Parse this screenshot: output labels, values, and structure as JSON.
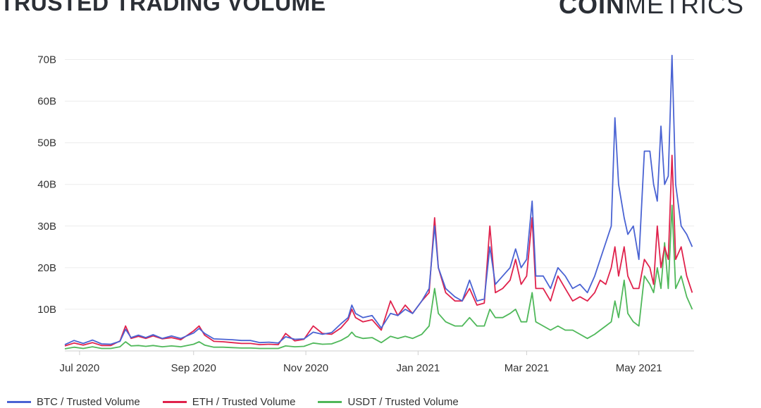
{
  "header": {
    "title": "TRUSTED TRADING VOLUME",
    "brand_bold": "COIN",
    "brand_light": "METRICS"
  },
  "chart_data": {
    "type": "line",
    "title": "TRUSTED TRADING VOLUME",
    "xlabel": "",
    "ylabel": "",
    "x_range": [
      "2020-06-23",
      "2021-05-31"
    ],
    "ylim": [
      0,
      75
    ],
    "y_unit": "B",
    "yticks": [
      10,
      20,
      30,
      40,
      50,
      60,
      70
    ],
    "ytick_labels": [
      "10B",
      "20B",
      "30B",
      "40B",
      "50B",
      "60B",
      "70B"
    ],
    "xticks": [
      "2020-07-01",
      "2020-09-01",
      "2020-11-01",
      "2021-01-01",
      "2021-03-01",
      "2021-05-01"
    ],
    "xtick_labels": [
      "Jul 2020",
      "Sep 2020",
      "Nov 2020",
      "Jan 2021",
      "Mar 2021",
      "May 2021"
    ],
    "grid": true,
    "legend_position": "bottom",
    "series": [
      {
        "name": "BTC / Trusted Volume",
        "color": "#4a63d3",
        "points": [
          [
            "2020-06-23",
            1.5
          ],
          [
            "2020-06-28",
            2.5
          ],
          [
            "2020-07-03",
            1.8
          ],
          [
            "2020-07-08",
            2.6
          ],
          [
            "2020-07-13",
            1.7
          ],
          [
            "2020-07-18",
            1.6
          ],
          [
            "2020-07-23",
            2.3
          ],
          [
            "2020-07-26",
            5.2
          ],
          [
            "2020-07-29",
            3.2
          ],
          [
            "2020-08-02",
            3.8
          ],
          [
            "2020-08-06",
            3.2
          ],
          [
            "2020-08-10",
            3.9
          ],
          [
            "2020-08-15",
            3.0
          ],
          [
            "2020-08-20",
            3.6
          ],
          [
            "2020-08-25",
            3.0
          ],
          [
            "2020-09-01",
            4.3
          ],
          [
            "2020-09-04",
            5.4
          ],
          [
            "2020-09-07",
            4.2
          ],
          [
            "2020-09-12",
            2.9
          ],
          [
            "2020-09-17",
            2.8
          ],
          [
            "2020-09-22",
            2.7
          ],
          [
            "2020-09-27",
            2.5
          ],
          [
            "2020-10-02",
            2.5
          ],
          [
            "2020-10-07",
            2.0
          ],
          [
            "2020-10-12",
            2.1
          ],
          [
            "2020-10-17",
            1.9
          ],
          [
            "2020-10-21",
            3.4
          ],
          [
            "2020-10-26",
            2.8
          ],
          [
            "2020-10-31",
            2.9
          ],
          [
            "2020-11-05",
            4.5
          ],
          [
            "2020-11-10",
            4.0
          ],
          [
            "2020-11-15",
            4.4
          ],
          [
            "2020-11-20",
            6.5
          ],
          [
            "2020-11-24",
            8.0
          ],
          [
            "2020-11-26",
            11.0
          ],
          [
            "2020-11-28",
            9.0
          ],
          [
            "2020-12-02",
            8.0
          ],
          [
            "2020-12-07",
            8.5
          ],
          [
            "2020-12-12",
            5.5
          ],
          [
            "2020-12-17",
            9.0
          ],
          [
            "2020-12-21",
            8.5
          ],
          [
            "2020-12-25",
            10.0
          ],
          [
            "2020-12-29",
            9.0
          ],
          [
            "2021-01-03",
            12.0
          ],
          [
            "2021-01-07",
            15.0
          ],
          [
            "2021-01-10",
            30.0
          ],
          [
            "2021-01-12",
            20.0
          ],
          [
            "2021-01-16",
            15.0
          ],
          [
            "2021-01-21",
            13.0
          ],
          [
            "2021-01-25",
            12.0
          ],
          [
            "2021-01-29",
            17.0
          ],
          [
            "2021-02-02",
            12.0
          ],
          [
            "2021-02-06",
            12.5
          ],
          [
            "2021-02-09",
            25.0
          ],
          [
            "2021-02-12",
            16.0
          ],
          [
            "2021-02-16",
            18.0
          ],
          [
            "2021-02-20",
            20.0
          ],
          [
            "2021-02-23",
            24.5
          ],
          [
            "2021-02-26",
            20.0
          ],
          [
            "2021-03-01",
            22.0
          ],
          [
            "2021-03-04",
            36.0
          ],
          [
            "2021-03-06",
            18.0
          ],
          [
            "2021-03-10",
            18.0
          ],
          [
            "2021-03-14",
            15.0
          ],
          [
            "2021-03-18",
            20.0
          ],
          [
            "2021-03-22",
            18.0
          ],
          [
            "2021-03-26",
            15.0
          ],
          [
            "2021-03-30",
            16.0
          ],
          [
            "2021-04-03",
            14.0
          ],
          [
            "2021-04-07",
            18.0
          ],
          [
            "2021-04-10",
            22.0
          ],
          [
            "2021-04-13",
            26.0
          ],
          [
            "2021-04-16",
            30.0
          ],
          [
            "2021-04-18",
            56.0
          ],
          [
            "2021-04-20",
            40.0
          ],
          [
            "2021-04-23",
            32.0
          ],
          [
            "2021-04-25",
            28.0
          ],
          [
            "2021-04-28",
            30.0
          ],
          [
            "2021-05-01",
            22.0
          ],
          [
            "2021-05-04",
            48.0
          ],
          [
            "2021-05-07",
            48.0
          ],
          [
            "2021-05-09",
            40.0
          ],
          [
            "2021-05-11",
            36.0
          ],
          [
            "2021-05-13",
            54.0
          ],
          [
            "2021-05-15",
            40.0
          ],
          [
            "2021-05-17",
            42.0
          ],
          [
            "2021-05-19",
            71.0
          ],
          [
            "2021-05-21",
            40.0
          ],
          [
            "2021-05-24",
            30.0
          ],
          [
            "2021-05-27",
            28.0
          ],
          [
            "2021-05-30",
            25.0
          ]
        ]
      },
      {
        "name": "ETH / Trusted Volume",
        "color": "#e0224c",
        "points": [
          [
            "2020-06-23",
            1.2
          ],
          [
            "2020-06-28",
            1.9
          ],
          [
            "2020-07-03",
            1.4
          ],
          [
            "2020-07-08",
            2.0
          ],
          [
            "2020-07-13",
            1.3
          ],
          [
            "2020-07-18",
            1.3
          ],
          [
            "2020-07-23",
            2.4
          ],
          [
            "2020-07-26",
            6.0
          ],
          [
            "2020-07-29",
            3.0
          ],
          [
            "2020-08-02",
            3.5
          ],
          [
            "2020-08-06",
            3.0
          ],
          [
            "2020-08-10",
            3.6
          ],
          [
            "2020-08-15",
            2.9
          ],
          [
            "2020-08-20",
            3.2
          ],
          [
            "2020-08-25",
            2.7
          ],
          [
            "2020-09-01",
            4.8
          ],
          [
            "2020-09-04",
            6.0
          ],
          [
            "2020-09-07",
            3.8
          ],
          [
            "2020-09-12",
            2.3
          ],
          [
            "2020-09-17",
            2.2
          ],
          [
            "2020-09-22",
            2.0
          ],
          [
            "2020-09-27",
            1.8
          ],
          [
            "2020-10-02",
            1.8
          ],
          [
            "2020-10-07",
            1.5
          ],
          [
            "2020-10-12",
            1.6
          ],
          [
            "2020-10-17",
            1.5
          ],
          [
            "2020-10-21",
            4.2
          ],
          [
            "2020-10-26",
            2.4
          ],
          [
            "2020-10-31",
            2.8
          ],
          [
            "2020-11-05",
            6.0
          ],
          [
            "2020-11-10",
            4.2
          ],
          [
            "2020-11-15",
            4.0
          ],
          [
            "2020-11-20",
            5.5
          ],
          [
            "2020-11-24",
            7.5
          ],
          [
            "2020-11-26",
            10.0
          ],
          [
            "2020-11-28",
            8.0
          ],
          [
            "2020-12-02",
            7.0
          ],
          [
            "2020-12-07",
            7.5
          ],
          [
            "2020-12-12",
            5.0
          ],
          [
            "2020-12-17",
            12.0
          ],
          [
            "2020-12-21",
            8.5
          ],
          [
            "2020-12-25",
            11.0
          ],
          [
            "2020-12-29",
            9.0
          ],
          [
            "2021-01-03",
            12.0
          ],
          [
            "2021-01-07",
            14.0
          ],
          [
            "2021-01-10",
            32.0
          ],
          [
            "2021-01-12",
            20.0
          ],
          [
            "2021-01-16",
            14.0
          ],
          [
            "2021-01-21",
            12.0
          ],
          [
            "2021-01-25",
            12.0
          ],
          [
            "2021-01-29",
            15.0
          ],
          [
            "2021-02-02",
            11.0
          ],
          [
            "2021-02-06",
            11.5
          ],
          [
            "2021-02-09",
            30.0
          ],
          [
            "2021-02-12",
            14.0
          ],
          [
            "2021-02-16",
            15.0
          ],
          [
            "2021-02-20",
            17.0
          ],
          [
            "2021-02-23",
            22.0
          ],
          [
            "2021-02-26",
            16.0
          ],
          [
            "2021-03-01",
            18.0
          ],
          [
            "2021-03-04",
            32.0
          ],
          [
            "2021-03-06",
            15.0
          ],
          [
            "2021-03-10",
            15.0
          ],
          [
            "2021-03-14",
            12.0
          ],
          [
            "2021-03-18",
            18.0
          ],
          [
            "2021-03-22",
            15.0
          ],
          [
            "2021-03-26",
            12.0
          ],
          [
            "2021-03-30",
            13.0
          ],
          [
            "2021-04-03",
            12.0
          ],
          [
            "2021-04-07",
            14.0
          ],
          [
            "2021-04-10",
            17.0
          ],
          [
            "2021-04-13",
            16.0
          ],
          [
            "2021-04-16",
            20.0
          ],
          [
            "2021-04-18",
            25.0
          ],
          [
            "2021-04-20",
            18.0
          ],
          [
            "2021-04-23",
            25.0
          ],
          [
            "2021-04-25",
            18.0
          ],
          [
            "2021-04-28",
            15.0
          ],
          [
            "2021-05-01",
            15.0
          ],
          [
            "2021-05-04",
            22.0
          ],
          [
            "2021-05-07",
            20.0
          ],
          [
            "2021-05-09",
            16.0
          ],
          [
            "2021-05-11",
            30.0
          ],
          [
            "2021-05-13",
            20.0
          ],
          [
            "2021-05-15",
            25.0
          ],
          [
            "2021-05-17",
            22.0
          ],
          [
            "2021-05-19",
            47.0
          ],
          [
            "2021-05-21",
            22.0
          ],
          [
            "2021-05-24",
            25.0
          ],
          [
            "2021-05-27",
            18.0
          ],
          [
            "2021-05-30",
            14.0
          ]
        ]
      },
      {
        "name": "USDT / Trusted Volume",
        "color": "#4fb85a",
        "points": [
          [
            "2020-06-23",
            0.5
          ],
          [
            "2020-06-28",
            0.9
          ],
          [
            "2020-07-03",
            0.6
          ],
          [
            "2020-07-08",
            1.0
          ],
          [
            "2020-07-13",
            0.6
          ],
          [
            "2020-07-18",
            0.6
          ],
          [
            "2020-07-23",
            1.0
          ],
          [
            "2020-07-26",
            2.2
          ],
          [
            "2020-07-29",
            1.2
          ],
          [
            "2020-08-02",
            1.3
          ],
          [
            "2020-08-06",
            1.1
          ],
          [
            "2020-08-10",
            1.3
          ],
          [
            "2020-08-15",
            1.0
          ],
          [
            "2020-08-20",
            1.2
          ],
          [
            "2020-08-25",
            1.0
          ],
          [
            "2020-09-01",
            1.6
          ],
          [
            "2020-09-04",
            2.2
          ],
          [
            "2020-09-07",
            1.4
          ],
          [
            "2020-09-12",
            0.9
          ],
          [
            "2020-09-17",
            0.9
          ],
          [
            "2020-09-22",
            0.8
          ],
          [
            "2020-09-27",
            0.7
          ],
          [
            "2020-10-02",
            0.7
          ],
          [
            "2020-10-07",
            0.6
          ],
          [
            "2020-10-12",
            0.6
          ],
          [
            "2020-10-17",
            0.6
          ],
          [
            "2020-10-21",
            1.2
          ],
          [
            "2020-10-26",
            1.0
          ],
          [
            "2020-10-31",
            1.1
          ],
          [
            "2020-11-05",
            1.9
          ],
          [
            "2020-11-10",
            1.6
          ],
          [
            "2020-11-15",
            1.7
          ],
          [
            "2020-11-20",
            2.5
          ],
          [
            "2020-11-24",
            3.5
          ],
          [
            "2020-11-26",
            4.5
          ],
          [
            "2020-11-28",
            3.5
          ],
          [
            "2020-12-02",
            3.0
          ],
          [
            "2020-12-07",
            3.2
          ],
          [
            "2020-12-12",
            2.0
          ],
          [
            "2020-12-17",
            3.5
          ],
          [
            "2020-12-21",
            3.0
          ],
          [
            "2020-12-25",
            3.5
          ],
          [
            "2020-12-29",
            3.0
          ],
          [
            "2021-01-03",
            4.0
          ],
          [
            "2021-01-07",
            6.0
          ],
          [
            "2021-01-10",
            15.0
          ],
          [
            "2021-01-12",
            9.0
          ],
          [
            "2021-01-16",
            7.0
          ],
          [
            "2021-01-21",
            6.0
          ],
          [
            "2021-01-25",
            6.0
          ],
          [
            "2021-01-29",
            8.0
          ],
          [
            "2021-02-02",
            6.0
          ],
          [
            "2021-02-06",
            6.0
          ],
          [
            "2021-02-09",
            10.0
          ],
          [
            "2021-02-12",
            8.0
          ],
          [
            "2021-02-16",
            8.0
          ],
          [
            "2021-02-20",
            9.0
          ],
          [
            "2021-02-23",
            10.0
          ],
          [
            "2021-02-26",
            7.0
          ],
          [
            "2021-03-01",
            7.0
          ],
          [
            "2021-03-04",
            14.0
          ],
          [
            "2021-03-06",
            7.0
          ],
          [
            "2021-03-10",
            6.0
          ],
          [
            "2021-03-14",
            5.0
          ],
          [
            "2021-03-18",
            6.0
          ],
          [
            "2021-03-22",
            5.0
          ],
          [
            "2021-03-26",
            5.0
          ],
          [
            "2021-03-30",
            4.0
          ],
          [
            "2021-04-03",
            3.0
          ],
          [
            "2021-04-07",
            4.0
          ],
          [
            "2021-04-10",
            5.0
          ],
          [
            "2021-04-13",
            6.0
          ],
          [
            "2021-04-16",
            7.0
          ],
          [
            "2021-04-18",
            12.0
          ],
          [
            "2021-04-20",
            8.0
          ],
          [
            "2021-04-23",
            17.0
          ],
          [
            "2021-04-25",
            9.0
          ],
          [
            "2021-04-28",
            7.0
          ],
          [
            "2021-05-01",
            6.0
          ],
          [
            "2021-05-04",
            18.0
          ],
          [
            "2021-05-07",
            16.0
          ],
          [
            "2021-05-09",
            14.0
          ],
          [
            "2021-05-11",
            20.0
          ],
          [
            "2021-05-13",
            15.0
          ],
          [
            "2021-05-15",
            26.0
          ],
          [
            "2021-05-17",
            15.0
          ],
          [
            "2021-05-19",
            35.0
          ],
          [
            "2021-05-21",
            15.0
          ],
          [
            "2021-05-24",
            18.0
          ],
          [
            "2021-05-27",
            13.0
          ],
          [
            "2021-05-30",
            10.0
          ]
        ]
      }
    ]
  }
}
